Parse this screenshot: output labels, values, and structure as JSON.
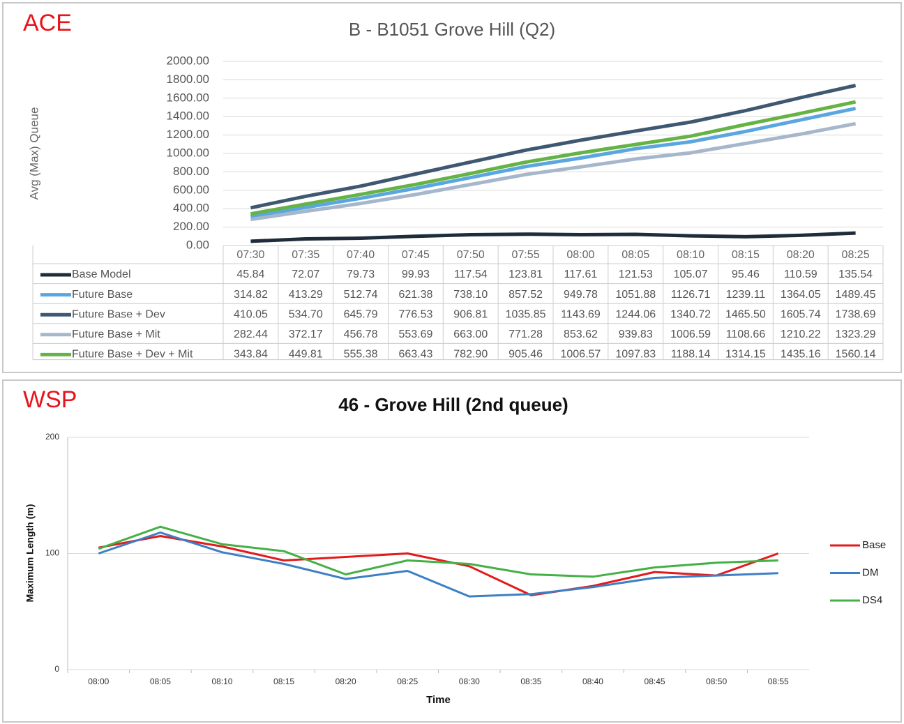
{
  "chart_data": [
    {
      "type": "line",
      "source_label": "ACE",
      "title": "B - B1051 Grove Hill (Q2)",
      "y_label": "Avg (Max) Queue",
      "categories": [
        "07:30",
        "07:35",
        "07:40",
        "07:45",
        "07:50",
        "07:55",
        "08:00",
        "08:05",
        "08:10",
        "08:15",
        "08:20",
        "08:25"
      ],
      "ylim": [
        0,
        2000
      ],
      "yticks": [
        {
          "value": 0,
          "label": "0.00"
        },
        {
          "value": 200,
          "label": "200.00"
        },
        {
          "value": 400,
          "label": "400.00"
        },
        {
          "value": 600,
          "label": "600.00"
        },
        {
          "value": 800,
          "label": "800.00"
        },
        {
          "value": 1000,
          "label": "1000.00"
        },
        {
          "value": 1200,
          "label": "1200.00"
        },
        {
          "value": 1400,
          "label": "1400.00"
        },
        {
          "value": 1600,
          "label": "1600.00"
        },
        {
          "value": 1800,
          "label": "1800.00"
        },
        {
          "value": 2000,
          "label": "2000.00"
        }
      ],
      "grid": true,
      "legend": "data-table",
      "series": [
        {
          "name": "Base Model",
          "color": "#1f2d3a",
          "values": [
            45.84,
            72.07,
            79.73,
            99.93,
            117.54,
            123.81,
            117.61,
            121.53,
            105.07,
            95.46,
            110.59,
            135.54
          ],
          "value_labels": [
            "45.84",
            "72.07",
            "79.73",
            "99.93",
            "117.54",
            "123.81",
            "117.61",
            "121.53",
            "105.07",
            "95.46",
            "110.59",
            "135.54"
          ]
        },
        {
          "name": "Future Base",
          "color": "#5aa6e0",
          "values": [
            314.82,
            413.29,
            512.74,
            621.38,
            738.1,
            857.52,
            949.78,
            1051.88,
            1126.71,
            1239.11,
            1364.05,
            1489.45
          ],
          "value_labels": [
            "314.82",
            "413.29",
            "512.74",
            "621.38",
            "738.10",
            "857.52",
            "949.78",
            "1051.88",
            "1126.71",
            "1239.11",
            "1364.05",
            "1489.45"
          ]
        },
        {
          "name": "Future Base + Dev",
          "color": "#3f5872",
          "values": [
            410.05,
            534.7,
            645.79,
            776.53,
            906.81,
            1035.85,
            1143.69,
            1244.06,
            1340.72,
            1465.5,
            1605.74,
            1738.69
          ],
          "value_labels": [
            "410.05",
            "534.70",
            "645.79",
            "776.53",
            "906.81",
            "1035.85",
            "1143.69",
            "1244.06",
            "1340.72",
            "1465.50",
            "1605.74",
            "1738.69"
          ]
        },
        {
          "name": "Future Base + Mit",
          "color": "#a6b7cc",
          "values": [
            282.44,
            372.17,
            456.78,
            553.69,
            663,
            771.28,
            853.62,
            939.83,
            1006.59,
            1108.66,
            1210.22,
            1323.29
          ],
          "value_labels": [
            "282.44",
            "372.17",
            "456.78",
            "553.69",
            "663.00",
            "771.28",
            "853.62",
            "939.83",
            "1006.59",
            "1108.66",
            "1210.22",
            "1323.29"
          ]
        },
        {
          "name": "Future Base + Dev + Mit",
          "color": "#66b345",
          "values": [
            343.84,
            449.81,
            555.38,
            663.43,
            782.9,
            905.46,
            1006.57,
            1097.83,
            1188.14,
            1314.15,
            1435.16,
            1560.14
          ],
          "value_labels": [
            "343.84",
            "449.81",
            "555.38",
            "663.43",
            "782.90",
            "905.46",
            "1006.57",
            "1097.83",
            "1188.14",
            "1314.15",
            "1435.16",
            "1560.14"
          ]
        }
      ]
    },
    {
      "type": "line",
      "source_label": "WSP",
      "title": "46 - Grove Hill (2nd queue)",
      "x_label": "Time",
      "y_label": "Maximum Length (m)",
      "categories": [
        "08:00",
        "08:05",
        "08:10",
        "08:15",
        "08:20",
        "08:25",
        "08:30",
        "08:35",
        "08:40",
        "08:45",
        "08:50",
        "08:55"
      ],
      "ylim": [
        0,
        200
      ],
      "yticks": [
        0,
        100,
        200
      ],
      "grid": true,
      "legend": "right",
      "series": [
        {
          "name": "Base",
          "color": "#e31a1c",
          "values": [
            105,
            115,
            106,
            94,
            97,
            100,
            89,
            64,
            72,
            84,
            81,
            100
          ]
        },
        {
          "name": "DM",
          "color": "#3d7fc4",
          "values": [
            100,
            118,
            101,
            91,
            78,
            85,
            63,
            65,
            71,
            79,
            81,
            83
          ]
        },
        {
          "name": "DS4",
          "color": "#45b045",
          "values": [
            104,
            123,
            108,
            102,
            82,
            94,
            91,
            82,
            80,
            88,
            92,
            94
          ]
        }
      ]
    }
  ]
}
